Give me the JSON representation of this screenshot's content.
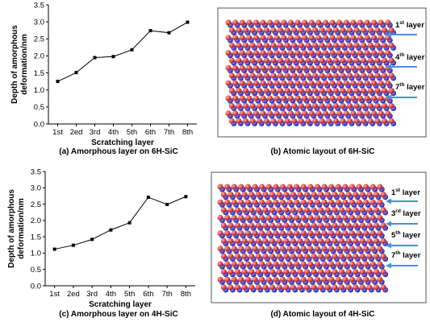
{
  "chart_data": [
    {
      "type": "line",
      "caption": "(a) Amorphous layer on 6H-SiC",
      "categories": [
        "1st",
        "2ed",
        "3rd",
        "4th",
        "5th",
        "6th",
        "7th",
        "8th"
      ],
      "values": [
        1.25,
        1.51,
        1.95,
        1.98,
        2.18,
        2.74,
        2.68,
        2.99
      ],
      "xlabel": "Scratching layer",
      "ylabel": "Depth of amorphous deformation/nm",
      "ylabel_lines": [
        "Depth of amorphous",
        "deformation/nm"
      ],
      "ylim": [
        0.0,
        3.5
      ],
      "yticks": [
        "0.0",
        "0.5",
        "1.0",
        "1.5",
        "2.0",
        "2.5",
        "3.0",
        "3.5"
      ],
      "grid": false
    },
    {
      "type": "line",
      "caption": "(c) Amorphous layer on 4H-SiC",
      "categories": [
        "1st",
        "2ed",
        "3rd",
        "4th",
        "5th",
        "6th",
        "7th",
        "8th"
      ],
      "values": [
        1.12,
        1.24,
        1.42,
        1.71,
        1.93,
        2.71,
        2.49,
        2.73
      ],
      "xlabel": "Scratching layer",
      "ylabel": "Depth of amorphous deformation/nm",
      "ylabel_lines": [
        "Depth of amorphous",
        "deformation/nm"
      ],
      "ylim": [
        0.0,
        3.5
      ],
      "yticks": [
        "0.0",
        "0.5",
        "1.0",
        "1.5",
        "2.0",
        "2.5",
        "3.0",
        "3.5"
      ],
      "grid": false
    }
  ],
  "panels": {
    "b": {
      "caption": "(b) Atomic layout of 6H-SiC",
      "labels": [
        {
          "num": "1",
          "sup": "st",
          "text": " layer"
        },
        {
          "num": "4",
          "sup": "th",
          "text": " layer"
        },
        {
          "num": "7",
          "sup": "th",
          "text": " layer"
        }
      ]
    },
    "d": {
      "caption": "(d) Atomic layout of 4H-SiC",
      "labels": [
        {
          "num": "1",
          "sup": "st",
          "text": " layer"
        },
        {
          "num": "3",
          "sup": "rd",
          "text": " layer"
        },
        {
          "num": "5",
          "sup": "th",
          "text": " layer"
        },
        {
          "num": "7",
          "sup": "th",
          "text": " layer"
        }
      ]
    }
  },
  "colors": {
    "atom_red": "#d94040",
    "atom_blue": "#4a4ad8",
    "arrow": "#4a8fd4",
    "line": "#000000"
  }
}
